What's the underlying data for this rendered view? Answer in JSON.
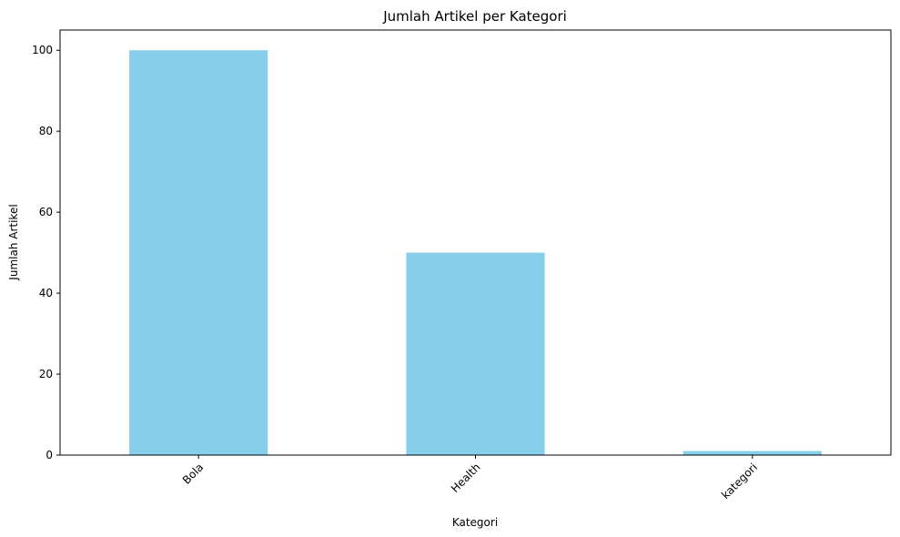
{
  "chart_data": {
    "type": "bar",
    "title": "Jumlah Artikel per Kategori",
    "xlabel": "Kategori",
    "ylabel": "Jumlah Artikel",
    "categories": [
      "Bola",
      "Health",
      "kategori"
    ],
    "values": [
      100,
      50,
      1
    ],
    "ylim": [
      0,
      105
    ],
    "yticks": [
      0,
      20,
      40,
      60,
      80,
      100
    ],
    "xtick_rotation_deg": 45,
    "grid": false,
    "bar_color": "#87ceeb"
  }
}
